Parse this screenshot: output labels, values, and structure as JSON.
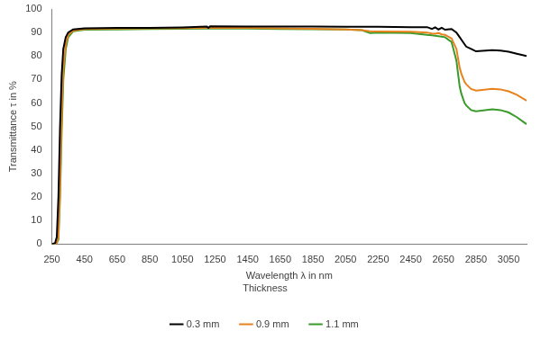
{
  "chart_data": {
    "type": "line",
    "x_label": "Wavelength λ in nm",
    "y_label": "Transmittance τ in %",
    "legend_title": "Thickness",
    "legend": "bottom",
    "grid": false,
    "xlim": [
      250,
      3160
    ],
    "xticks": [
      250,
      450,
      650,
      850,
      1050,
      1250,
      1450,
      1650,
      1850,
      2050,
      2250,
      2450,
      2650,
      2850,
      3050
    ],
    "ylim": [
      0,
      100
    ],
    "yticks": [
      0,
      10,
      20,
      30,
      40,
      50,
      60,
      70,
      80,
      90,
      100
    ],
    "x": [
      250,
      270,
      280,
      290,
      300,
      310,
      320,
      335,
      350,
      380,
      450,
      650,
      850,
      1050,
      1200,
      1210,
      1220,
      1450,
      1650,
      1850,
      2050,
      2150,
      2200,
      2250,
      2450,
      2550,
      2580,
      2600,
      2620,
      2640,
      2660,
      2700,
      2730,
      2750,
      2760,
      2780,
      2790,
      2820,
      2850,
      2950,
      3000,
      3050,
      3100,
      3160
    ],
    "series": [
      {
        "name": "0.3 mm",
        "color": "#000000",
        "values": [
          0,
          0.5,
          3,
          20,
          50,
          72,
          83,
          88,
          90,
          91.3,
          91.8,
          92,
          92,
          92.2,
          92.5,
          92,
          92.6,
          92.5,
          92.5,
          92.5,
          92.4,
          92.4,
          92.4,
          92.4,
          92.3,
          92.3,
          91.5,
          92.2,
          91.3,
          92,
          91.2,
          91.5,
          90,
          88,
          87,
          85,
          84,
          83,
          82,
          82.5,
          82.3,
          81.8,
          81,
          80
        ]
      },
      {
        "name": "0.9 mm",
        "color": "#e8821e",
        "values": [
          0,
          0,
          0.5,
          3,
          25,
          55,
          75,
          85,
          89,
          90.8,
          91.5,
          91.7,
          91.8,
          91.9,
          92,
          92,
          92,
          92,
          91.8,
          91.6,
          91.3,
          91,
          90.5,
          90.4,
          90.3,
          90,
          89.6,
          89.5,
          89.8,
          89.2,
          89,
          87.5,
          83,
          75,
          72.5,
          69,
          68,
          66,
          65.3,
          66,
          65.8,
          65,
          63.5,
          61
        ]
      },
      {
        "name": "1.1 mm",
        "color": "#3a9a2a",
        "values": [
          0,
          0,
          0.5,
          2,
          20,
          48,
          70,
          83,
          88,
          90.5,
          91.2,
          91.3,
          91.5,
          91.6,
          91.7,
          91.7,
          91.7,
          91.7,
          91.5,
          91.4,
          91.3,
          91,
          89.8,
          90,
          89.8,
          89,
          88.8,
          88.6,
          88.4,
          88.2,
          88,
          86,
          78,
          67,
          64,
          60,
          59,
          57,
          56.5,
          57.3,
          57,
          56,
          54,
          51
        ]
      }
    ]
  }
}
